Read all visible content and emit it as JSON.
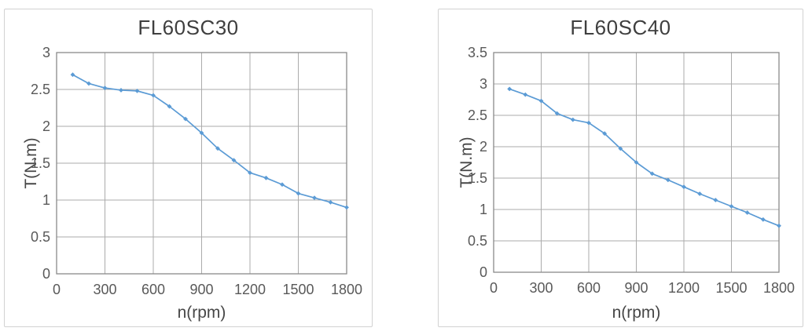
{
  "page": {
    "background": "#FFFFFF"
  },
  "colors": {
    "accent_blue": "#5B9BD5",
    "gridline": "#ABABAB",
    "plot_border": "#8A8A8A",
    "card_border": "#D2D2D2",
    "title_text": "#3F3F3F",
    "tick_text": "#595959"
  },
  "chart_data": [
    {
      "type": "line",
      "title": "FL60SC30",
      "xlabel": "n(rpm)",
      "ylabel": "T(N.m)",
      "xlim": [
        0,
        1800
      ],
      "xtick": 300,
      "ylim": [
        0,
        3
      ],
      "ytick": 0.5,
      "grid": true,
      "legend": "none",
      "line_color": "#5B9BD5",
      "x": [
        100,
        200,
        300,
        400,
        500,
        600,
        700,
        800,
        900,
        1000,
        1100,
        1200,
        1300,
        1400,
        1500,
        1600,
        1700,
        1800
      ],
      "values": [
        2.7,
        2.58,
        2.52,
        2.49,
        2.48,
        2.42,
        2.27,
        2.1,
        1.91,
        1.7,
        1.54,
        1.37,
        1.3,
        1.21,
        1.09,
        1.03,
        0.97,
        0.9
      ]
    },
    {
      "type": "line",
      "title": "FL60SC40",
      "xlabel": "n(rpm)",
      "ylabel": "T(N.m)",
      "xlim": [
        0,
        1800
      ],
      "xtick": 300,
      "ylim": [
        0,
        3.5
      ],
      "ytick": 0.5,
      "grid": true,
      "legend": "none",
      "line_color": "#5B9BD5",
      "x": [
        100,
        200,
        300,
        400,
        500,
        600,
        700,
        800,
        900,
        1000,
        1100,
        1200,
        1300,
        1400,
        1500,
        1600,
        1700,
        1800
      ],
      "values": [
        2.92,
        2.83,
        2.73,
        2.53,
        2.43,
        2.38,
        2.21,
        1.97,
        1.75,
        1.57,
        1.47,
        1.36,
        1.25,
        1.15,
        1.05,
        0.95,
        0.84,
        0.74
      ]
    }
  ]
}
